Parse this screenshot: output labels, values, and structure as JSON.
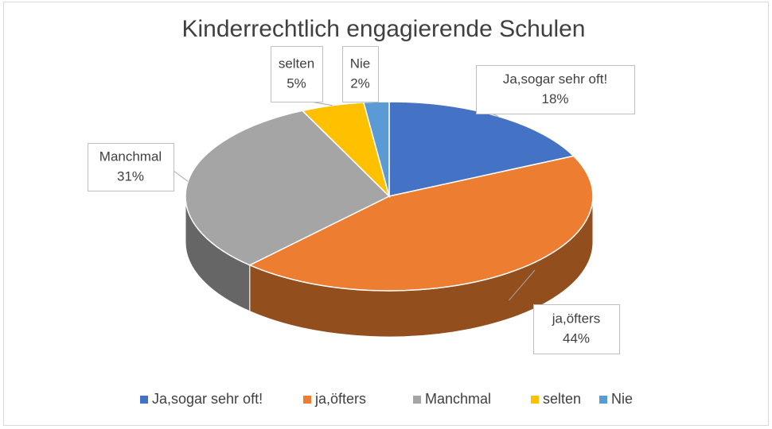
{
  "chart_data": {
    "type": "pie3d",
    "title": "Kinderrechtlich engagierende Schulen",
    "categories": [
      "Ja,sogar sehr oft!",
      "ja,öfters",
      "Manchmal",
      "selten",
      "Nie"
    ],
    "values": [
      18,
      44,
      31,
      5,
      2
    ],
    "value_labels": [
      "18%",
      "44%",
      "31%",
      "5%",
      "2%"
    ],
    "colors": [
      "#4472c4",
      "#ed7d31",
      "#a5a5a5",
      "#ffc000",
      "#5b9bd5"
    ],
    "legend": "bottom"
  }
}
